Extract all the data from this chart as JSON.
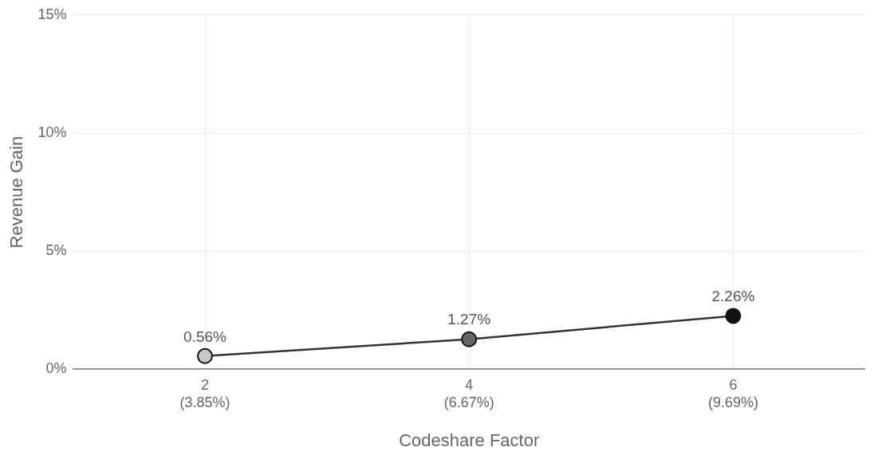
{
  "chart_data": {
    "type": "line",
    "categories": [
      "2\n(3.85%)",
      "4\n(6.67%)",
      "6\n(9.69%)"
    ],
    "series": [
      {
        "color": "#333333",
        "colors": [
          "#c8c8c8",
          "#666666",
          "#111111"
        ],
        "values": [
          0.56,
          1.27,
          2.26
        ],
        "value_labels": [
          "0.56%",
          "1.27%",
          "2.26%"
        ]
      }
    ],
    "xlabel": "Codeshare Factor",
    "ylabel": "Revenue Gain",
    "ylim": [
      0,
      15
    ],
    "yticks": [
      {
        "value": 0,
        "label": "0%"
      },
      {
        "value": 5,
        "label": "5%"
      },
      {
        "value": 10,
        "label": "10%"
      },
      {
        "value": 15,
        "label": "15%"
      }
    ],
    "grid": true,
    "legend": false,
    "marker": "circle",
    "line_style": "solid"
  }
}
